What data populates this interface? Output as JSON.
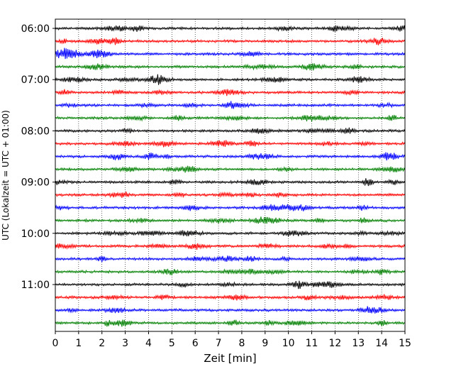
{
  "chart_data": {
    "type": "line",
    "title": "",
    "xlabel": "Zeit  [min]",
    "ylabel": "UTC (Lokalzeit = UTC + 01:00)",
    "xlim": [
      0,
      15
    ],
    "x_ticks": [
      "0",
      "1",
      "2",
      "3",
      "4",
      "5",
      "6",
      "7",
      "8",
      "9",
      "10",
      "11",
      "12",
      "13",
      "14",
      "15"
    ],
    "y_ticks": [
      "06:00",
      "07:00",
      "08:00",
      "09:00",
      "10:00",
      "11:00"
    ],
    "grid": "vertical dotted lines at each minute",
    "trace_colors": [
      "#000000",
      "#ff0000",
      "#0000ff",
      "#008000"
    ],
    "series": [
      {
        "start": "06:00",
        "color": "#000000"
      },
      {
        "start": "06:15",
        "color": "#ff0000"
      },
      {
        "start": "06:30",
        "color": "#0000ff"
      },
      {
        "start": "06:45",
        "color": "#008000"
      },
      {
        "start": "07:00",
        "color": "#000000"
      },
      {
        "start": "07:15",
        "color": "#ff0000"
      },
      {
        "start": "07:30",
        "color": "#0000ff"
      },
      {
        "start": "07:45",
        "color": "#008000"
      },
      {
        "start": "08:00",
        "color": "#000000"
      },
      {
        "start": "08:15",
        "color": "#ff0000"
      },
      {
        "start": "08:30",
        "color": "#0000ff"
      },
      {
        "start": "08:45",
        "color": "#008000"
      },
      {
        "start": "09:00",
        "color": "#000000"
      },
      {
        "start": "09:15",
        "color": "#ff0000"
      },
      {
        "start": "09:30",
        "color": "#0000ff"
      },
      {
        "start": "09:45",
        "color": "#008000"
      },
      {
        "start": "10:00",
        "color": "#000000"
      },
      {
        "start": "10:15",
        "color": "#ff0000"
      },
      {
        "start": "10:30",
        "color": "#0000ff"
      },
      {
        "start": "10:45",
        "color": "#008000"
      },
      {
        "start": "11:00",
        "color": "#000000"
      },
      {
        "start": "11:15",
        "color": "#ff0000"
      },
      {
        "start": "11:30",
        "color": "#0000ff"
      },
      {
        "start": "11:45",
        "color": "#008000"
      }
    ]
  }
}
